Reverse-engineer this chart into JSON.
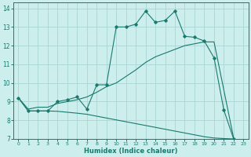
{
  "xlabel": "Humidex (Indice chaleur)",
  "bg_color": "#cceeed",
  "grid_color": "#aad4d4",
  "line_color": "#1a7a6e",
  "xlim": [
    -0.5,
    23.5
  ],
  "ylim": [
    7,
    14.3
  ],
  "xticks": [
    0,
    1,
    2,
    3,
    4,
    5,
    6,
    7,
    8,
    9,
    10,
    11,
    12,
    13,
    14,
    15,
    16,
    17,
    18,
    19,
    20,
    21,
    22,
    23
  ],
  "yticks": [
    7,
    8,
    9,
    10,
    11,
    12,
    13,
    14
  ],
  "line1_x": [
    0,
    1,
    2,
    3,
    4,
    5,
    6,
    7,
    8,
    9,
    10,
    11,
    12,
    13,
    14,
    15,
    16,
    17,
    18,
    19,
    20,
    21,
    22
  ],
  "line1_y": [
    9.2,
    8.5,
    8.5,
    8.5,
    9.0,
    9.1,
    9.25,
    8.6,
    9.9,
    9.9,
    13.0,
    13.0,
    13.15,
    13.85,
    13.25,
    13.35,
    13.85,
    12.5,
    12.45,
    12.25,
    11.35,
    8.55,
    7.0
  ],
  "line2_x": [
    0,
    1,
    2,
    3,
    4,
    5,
    6,
    7,
    8,
    9,
    10,
    11,
    12,
    13,
    14,
    15,
    16,
    17,
    18,
    19,
    20,
    22
  ],
  "line2_y": [
    9.2,
    8.6,
    8.7,
    8.7,
    8.9,
    9.0,
    9.1,
    9.25,
    9.5,
    9.8,
    10.0,
    10.35,
    10.7,
    11.1,
    11.4,
    11.6,
    11.8,
    12.0,
    12.1,
    12.2,
    12.2,
    7.05
  ],
  "line3_x": [
    0,
    1,
    2,
    3,
    4,
    5,
    6,
    7,
    8,
    9,
    10,
    11,
    12,
    13,
    14,
    15,
    16,
    17,
    18,
    19,
    20,
    21,
    22
  ],
  "line3_y": [
    9.2,
    8.5,
    8.5,
    8.5,
    8.48,
    8.43,
    8.38,
    8.32,
    8.22,
    8.12,
    8.02,
    7.92,
    7.82,
    7.72,
    7.62,
    7.52,
    7.42,
    7.32,
    7.22,
    7.12,
    7.05,
    7.02,
    7.0
  ]
}
